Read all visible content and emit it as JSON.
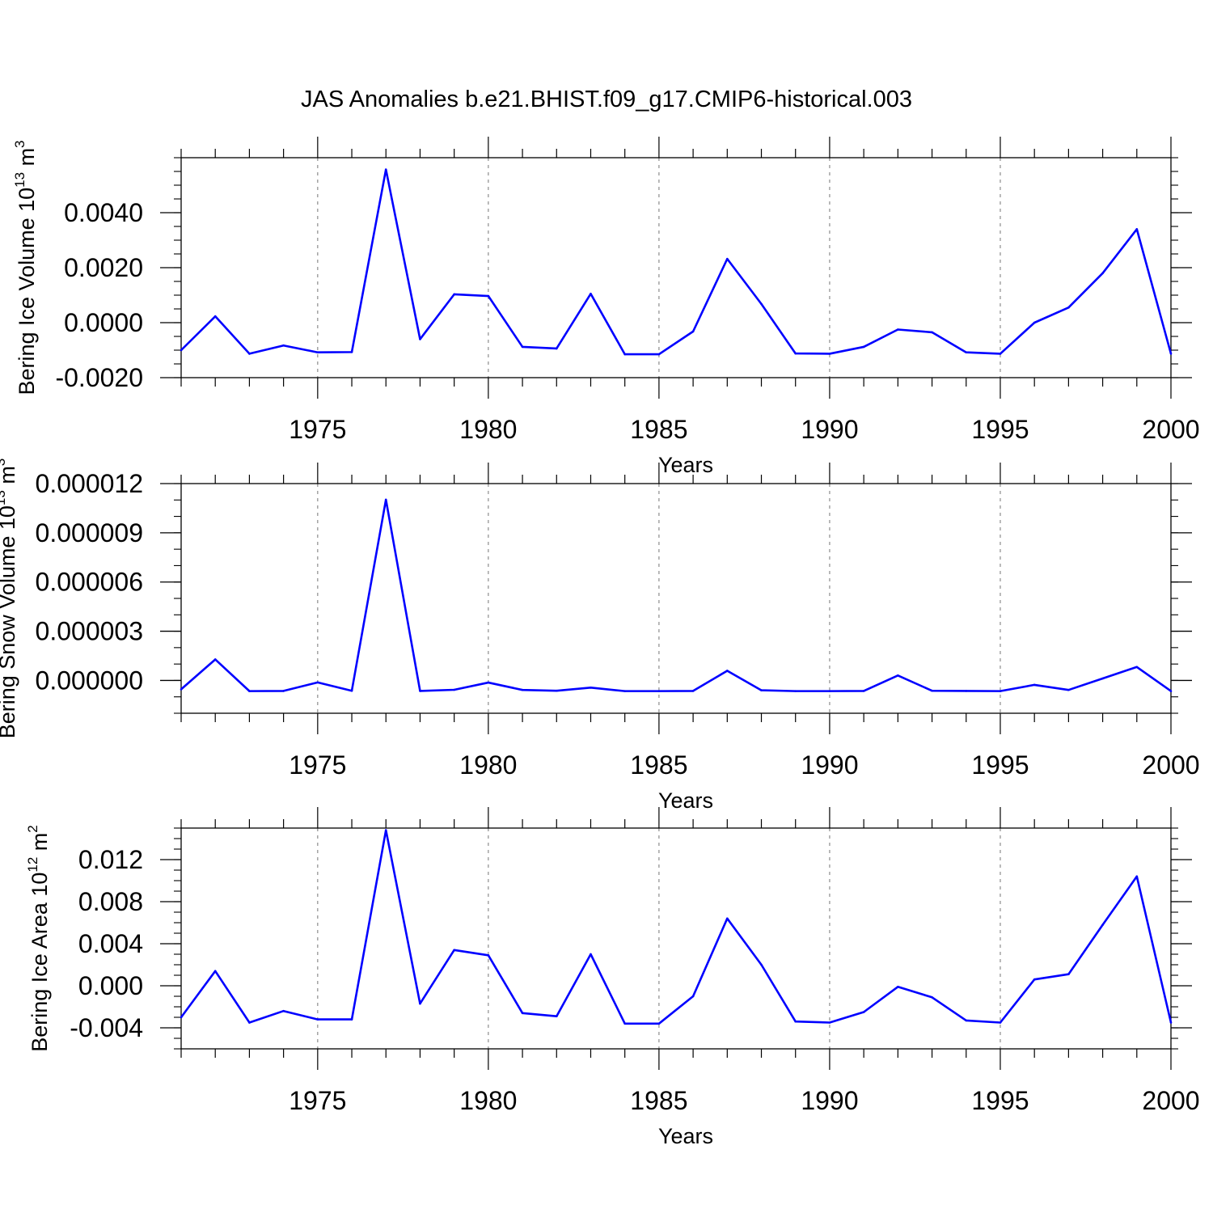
{
  "title": "JAS Anomalies b.e21.BHIST.f09_g17.CMIP6-historical.003",
  "colors": {
    "line": "#0000ff",
    "axes": "#000000",
    "grid": "#8c8c8c"
  },
  "chart_data": [
    {
      "type": "line",
      "ylabel_main": "Bering Ice Volume 10",
      "ylabel_exp": "13",
      "ylabel_unit": " m",
      "ylabel_unit_exp": "3",
      "xlabel": "Years",
      "xlim": [
        1971,
        2000
      ],
      "ylim": [
        -0.002,
        0.006
      ],
      "x_ticks": [
        1975,
        1980,
        1985,
        1990,
        1995,
        2000
      ],
      "y_ticks": [
        -0.002,
        0.0,
        0.002,
        0.004
      ],
      "y_tick_labels": [
        "-0.0020",
        "0.0000",
        "0.0020",
        "0.0040"
      ],
      "y_minor_step": 0.0005,
      "x": [
        1971,
        1972,
        1973,
        1974,
        1975,
        1976,
        1977,
        1978,
        1979,
        1980,
        1981,
        1982,
        1983,
        1984,
        1985,
        1986,
        1987,
        1988,
        1989,
        1990,
        1991,
        1992,
        1993,
        1994,
        1995,
        1996,
        1997,
        1998,
        1999,
        2000
      ],
      "series": [
        {
          "name": "Bering Ice Volume",
          "values": [
            -0.001,
            0.00023,
            -0.00113,
            -0.00083,
            -0.00108,
            -0.00107,
            0.00557,
            -0.0006,
            0.00103,
            0.00097,
            -0.00088,
            -0.00094,
            0.00105,
            -0.00115,
            -0.00115,
            -0.00032,
            0.00232,
            0.00068,
            -0.00112,
            -0.00113,
            -0.00088,
            -0.00025,
            -0.00035,
            -0.00108,
            -0.00113,
            0.0,
            0.00055,
            0.0018,
            0.0034,
            -0.00113
          ]
        }
      ]
    },
    {
      "type": "line",
      "ylabel_main": "Bering Snow Volume 10",
      "ylabel_exp": "13",
      "ylabel_unit": " m",
      "ylabel_unit_exp": "3",
      "xlabel": "Years",
      "xlim": [
        1971,
        2000
      ],
      "ylim": [
        -2e-06,
        1.2e-05
      ],
      "x_ticks": [
        1975,
        1980,
        1985,
        1990,
        1995,
        2000
      ],
      "y_ticks": [
        0.0,
        3e-06,
        6e-06,
        9e-06,
        1.2e-05
      ],
      "y_tick_labels": [
        "0.000000",
        "0.000003",
        "0.000006",
        "0.000009",
        "0.000012"
      ],
      "y_minor_step": 1e-06,
      "x": [
        1971,
        1972,
        1973,
        1974,
        1975,
        1976,
        1977,
        1978,
        1979,
        1980,
        1981,
        1982,
        1983,
        1984,
        1985,
        1986,
        1987,
        1988,
        1989,
        1990,
        1991,
        1992,
        1993,
        1994,
        1995,
        1996,
        1997,
        1998,
        1999,
        2000
      ],
      "series": [
        {
          "name": "Bering Snow Volume",
          "values": [
            -5.4e-07,
            1.28e-06,
            -6.5e-07,
            -6.4e-07,
            -1.2e-07,
            -6.3e-07,
            1.102e-05,
            -6.4e-07,
            -5.7e-07,
            -1.3e-07,
            -5.8e-07,
            -6.3e-07,
            -4.4e-07,
            -6.5e-07,
            -6.5e-07,
            -6.4e-07,
            5.9e-07,
            -6e-07,
            -6.5e-07,
            -6.5e-07,
            -6.4e-07,
            3e-07,
            -6.3e-07,
            -6.4e-07,
            -6.5e-07,
            -2.7e-07,
            -5.8e-07,
            1.2e-07,
            8.2e-07,
            -6.5e-07
          ]
        }
      ]
    },
    {
      "type": "line",
      "ylabel_main": "Bering Ice Area 10",
      "ylabel_exp": "12",
      "ylabel_unit": " m",
      "ylabel_unit_exp": "2",
      "xlabel": "Years",
      "xlim": [
        1971,
        2000
      ],
      "ylim": [
        -0.006,
        0.015
      ],
      "x_ticks": [
        1975,
        1980,
        1985,
        1990,
        1995,
        2000
      ],
      "y_ticks": [
        -0.004,
        0.0,
        0.004,
        0.008,
        0.012
      ],
      "y_tick_labels": [
        "-0.004",
        "0.000",
        "0.004",
        "0.008",
        "0.012"
      ],
      "y_minor_step": 0.001,
      "x": [
        1971,
        1972,
        1973,
        1974,
        1975,
        1976,
        1977,
        1978,
        1979,
        1980,
        1981,
        1982,
        1983,
        1984,
        1985,
        1986,
        1987,
        1988,
        1989,
        1990,
        1991,
        1992,
        1993,
        1994,
        1995,
        1996,
        1997,
        1998,
        1999,
        2000
      ],
      "series": [
        {
          "name": "Bering Ice Area",
          "values": [
            -0.003,
            0.0014,
            -0.0035,
            -0.0024,
            -0.0032,
            -0.0032,
            0.0148,
            -0.0017,
            0.0034,
            0.0029,
            -0.0026,
            -0.0029,
            0.003,
            -0.0036,
            -0.0036,
            -0.001,
            0.0064,
            0.002,
            -0.0034,
            -0.0035,
            -0.0025,
            -0.0001,
            -0.0011,
            -0.0033,
            -0.0035,
            0.0006,
            0.0011,
            0.0058,
            0.0104,
            -0.0035
          ]
        }
      ]
    }
  ]
}
